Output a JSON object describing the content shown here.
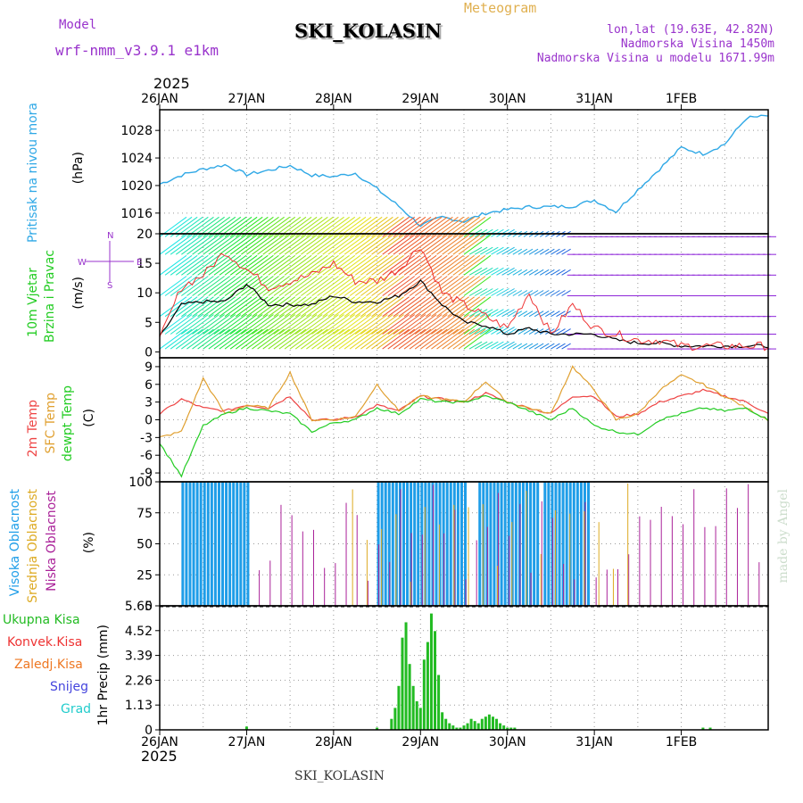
{
  "header": {
    "model_label": "Model",
    "model_name": "wrf-nmm_v3.9.1 e1km",
    "station": "SKI_KOLASIN",
    "meteogram": "Meteogram",
    "lonlat": "lon,lat (19.63E, 42.82N)",
    "elev": "Nadmorska Visina 1450m",
    "elev_model": "Nadmorska Visina u modelu 1671.99m",
    "year_top": "2025",
    "year_bottom": "2025",
    "footer_station": "SKI_KOLASIN",
    "watermark": "made by Angel"
  },
  "colors": {
    "pressure": "#2fa8e6",
    "wind_speed": "#000000",
    "gust": "#ee3333",
    "temp2m": "#ee4444",
    "sfc_temp": "#e0a030",
    "dewpt": "#22cc22",
    "high_cloud": "#1e9de8",
    "mid_cloud": "#ddaa22",
    "low_cloud": "#aa2299",
    "precip": "#22bb22",
    "conv": "#ee3333",
    "frz": "#ee7722",
    "snow": "#4444dd",
    "grad": "#22cccc",
    "axis_label_purple": "#9933cc"
  },
  "chart_data": [
    {
      "type": "line",
      "name": "pressure",
      "ylabel": [
        "Pritisak na nivou mora",
        "(hPa)"
      ],
      "ylim": [
        1013,
        1031
      ],
      "yticks": [
        1016,
        1020,
        1024,
        1028
      ],
      "xticks": [
        "26JAN",
        "27JAN",
        "28JAN",
        "29JAN",
        "30JAN",
        "31JAN",
        "1FEB"
      ],
      "x_hours": [
        0,
        6,
        12,
        18,
        24,
        30,
        36,
        42,
        48,
        54,
        60,
        66,
        72,
        78,
        84,
        90,
        96,
        102,
        108,
        114,
        120,
        126,
        132,
        138,
        144,
        150,
        156,
        162,
        168
      ],
      "values": [
        1020.2,
        1021.5,
        1022.4,
        1023.0,
        1021.6,
        1022.2,
        1022.9,
        1021.5,
        1021.3,
        1021.8,
        1019.5,
        1017.0,
        1014.2,
        1015.4,
        1014.8,
        1016.0,
        1016.5,
        1016.9,
        1016.9,
        1017.0,
        1017.9,
        1016.2,
        1019.4,
        1022.4,
        1025.5,
        1024.6,
        1026.0,
        1029.8,
        1030.1
      ]
    },
    {
      "type": "line",
      "name": "wind",
      "ylabel": [
        "10m Vjetar",
        "Brzina i Pravac",
        "(m/s)"
      ],
      "ylim": [
        -1,
        20
      ],
      "yticks": [
        0,
        5,
        10,
        15,
        20
      ],
      "direction_key": [
        "W",
        "E",
        "N",
        "S"
      ],
      "series": [
        {
          "name": "speed",
          "x_hours": [
            0,
            6,
            12,
            18,
            24,
            30,
            36,
            42,
            48,
            54,
            60,
            66,
            72,
            78,
            84,
            90,
            96,
            102,
            108,
            114,
            120,
            126,
            132,
            138,
            144,
            150,
            156,
            162,
            168
          ],
          "values": [
            2.5,
            8,
            8.5,
            8.5,
            11.5,
            8,
            8,
            8,
            9.5,
            8.5,
            8.5,
            9.5,
            12,
            8,
            5,
            4.5,
            3,
            4,
            3,
            3,
            3,
            2,
            1.5,
            1.5,
            1,
            1,
            1,
            1,
            1
          ]
        },
        {
          "name": "gust",
          "x_hours": [
            0,
            6,
            12,
            18,
            24,
            30,
            36,
            42,
            48,
            54,
            60,
            66,
            72,
            78,
            84,
            90,
            96,
            102,
            108,
            114,
            120,
            126,
            132,
            138,
            144,
            150,
            156,
            162,
            168
          ],
          "values": [
            2,
            11,
            13,
            17,
            14,
            11,
            12,
            13,
            15,
            12,
            12,
            14,
            18,
            10,
            8,
            6,
            4,
            10,
            3,
            8,
            4,
            3,
            2,
            2,
            1,
            1,
            1,
            1,
            1
          ]
        }
      ]
    },
    {
      "type": "line",
      "name": "temperature",
      "ylabel": [
        "2m Temp",
        "SFC Temp",
        "dewpt Temp",
        "(C)"
      ],
      "ylim": [
        -10.5,
        10.5
      ],
      "yticks": [
        -9,
        -6,
        -3,
        0,
        3,
        6,
        9
      ],
      "series": [
        {
          "name": "2m Temp",
          "x_hours": [
            0,
            6,
            12,
            18,
            24,
            30,
            36,
            42,
            48,
            54,
            60,
            66,
            72,
            78,
            84,
            90,
            96,
            102,
            108,
            114,
            120,
            126,
            132,
            138,
            144,
            150,
            156,
            162,
            168
          ],
          "values": [
            1,
            3.5,
            2,
            1.5,
            2.5,
            2,
            4,
            0,
            0,
            0.5,
            2.5,
            1.5,
            4,
            3.5,
            3,
            4.5,
            3,
            2,
            1,
            4,
            4,
            0.5,
            1,
            3,
            4,
            5,
            4,
            3,
            1
          ]
        },
        {
          "name": "SFC Temp",
          "x_hours": [
            0,
            6,
            12,
            18,
            24,
            30,
            36,
            42,
            48,
            54,
            60,
            66,
            72,
            78,
            84,
            90,
            96,
            102,
            108,
            114,
            120,
            126,
            132,
            138,
            144,
            150,
            156,
            162,
            168
          ],
          "values": [
            -3,
            -2,
            7,
            1,
            2.5,
            2,
            8,
            0,
            0,
            0.5,
            6,
            1.5,
            4,
            3.5,
            3,
            6.5,
            3,
            2,
            1,
            9,
            5,
            0,
            1,
            5,
            7.5,
            6,
            4,
            2,
            0
          ]
        },
        {
          "name": "dewpt Temp",
          "x_hours": [
            0,
            6,
            12,
            18,
            24,
            30,
            36,
            42,
            48,
            54,
            60,
            66,
            72,
            78,
            84,
            90,
            96,
            102,
            108,
            114,
            120,
            126,
            132,
            138,
            144,
            150,
            156,
            162,
            168
          ],
          "values": [
            -4,
            -9.5,
            -1,
            1,
            2,
            1.5,
            1,
            -2,
            -0.5,
            0,
            2,
            1,
            3.5,
            3,
            3,
            4,
            3,
            1.5,
            0,
            2,
            -1,
            -2,
            -2.5,
            0,
            1,
            2,
            1.5,
            2,
            0
          ]
        }
      ]
    },
    {
      "type": "bar",
      "name": "cloud",
      "ylabel": [
        "Visoka Oblacnost",
        "Srednja Oblacnost",
        "Niska Oblacnost",
        "(%)"
      ],
      "ylim": [
        0,
        100
      ],
      "yticks": [
        0,
        25,
        50,
        75,
        100
      ]
    },
    {
      "type": "bar",
      "name": "precip",
      "ylabel": [
        "1hr Precip (mm)"
      ],
      "ylim": [
        0,
        5.65
      ],
      "yticks": [
        0,
        1.13,
        2.26,
        3.39,
        4.52,
        5.65
      ],
      "legend": [
        "Ukupna Kisa",
        "Konvek.Kisa",
        "Zaledj.Kisa",
        "Snijeg",
        "Grad"
      ],
      "x_hours": [
        64,
        65,
        66,
        67,
        68,
        69,
        70,
        71,
        72,
        73,
        74,
        75,
        76,
        77,
        78,
        79,
        80,
        81,
        82,
        83,
        84,
        85,
        86,
        87,
        88,
        89,
        90,
        91,
        92,
        93,
        94,
        95,
        96,
        97,
        98
      ],
      "values": [
        0.5,
        1.0,
        2.0,
        4.2,
        4.9,
        3.0,
        2.0,
        1.3,
        1.0,
        3.2,
        4.0,
        5.3,
        4.5,
        2.5,
        0.8,
        0.5,
        0.3,
        0.2,
        0.1,
        0.1,
        0.2,
        0.3,
        0.5,
        0.4,
        0.3,
        0.5,
        0.6,
        0.7,
        0.6,
        0.5,
        0.3,
        0.2,
        0.1,
        0.1,
        0.1
      ]
    }
  ]
}
